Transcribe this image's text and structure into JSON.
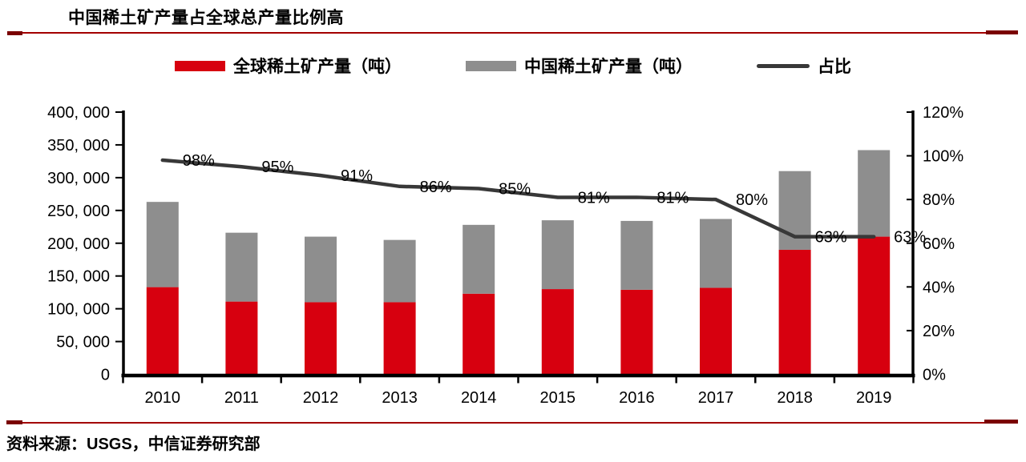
{
  "page": {
    "title": "中国稀土矿产量占全球总产量比例高",
    "source": "资料来源：USGS，中信证券研究部"
  },
  "style": {
    "accent_rule": "#a30000",
    "accent_dash": "#7a0000",
    "bar_red": "#d7000f",
    "bar_gray": "#8e8e8e",
    "line_dark": "#383838",
    "axis_black": "#000000"
  },
  "legend": {
    "items": [
      {
        "label": "全球稀土矿产量（吨）",
        "swatch": "bar",
        "color": "#d7000f"
      },
      {
        "label": "中国稀土矿产量（吨）",
        "swatch": "bar",
        "color": "#8e8e8e"
      },
      {
        "label": "占比",
        "swatch": "line",
        "color": "#383838"
      }
    ]
  },
  "chart_data": {
    "type": "bar",
    "subtype": "stacked-bar-with-secondary-axis-line",
    "title": "中国稀土矿产量占全球总产量比例高",
    "grid": false,
    "legend_position": "top-center",
    "categories": [
      "2010",
      "2011",
      "2012",
      "2013",
      "2014",
      "2015",
      "2016",
      "2017",
      "2018",
      "2019"
    ],
    "series": [
      {
        "name": "全球稀土矿产量（吨）",
        "type": "bar",
        "stack_order": "bottom",
        "axis": "left",
        "color": "#d7000f",
        "values": [
          133000,
          111000,
          110000,
          110000,
          123000,
          130000,
          129000,
          132000,
          190000,
          210000
        ]
      },
      {
        "name": "中国稀土矿产量（吨）",
        "type": "bar",
        "stack_order": "top",
        "axis": "left",
        "color": "#8e8e8e",
        "values": [
          130000,
          105000,
          100000,
          95000,
          105000,
          105000,
          105000,
          105000,
          120000,
          132000
        ]
      },
      {
        "name": "占比",
        "type": "line",
        "axis": "right",
        "color": "#383838",
        "values": [
          0.98,
          0.95,
          0.91,
          0.86,
          0.85,
          0.81,
          0.81,
          0.8,
          0.63,
          0.63
        ],
        "point_labels": [
          "98%",
          "95%",
          "91%",
          "86%",
          "85%",
          "81%",
          "81%",
          "80%",
          "63%",
          "63%"
        ]
      }
    ],
    "left_axis": {
      "min": 0,
      "max": 400000,
      "tick_step": 50000,
      "tick_labels_top_to_bottom": [
        "400, 000",
        "350, 000",
        "300, 000",
        "250, 000",
        "200, 000",
        "150, 000",
        "100, 000",
        "50, 000",
        "0"
      ]
    },
    "right_axis": {
      "min": "0%",
      "max": "120%",
      "tick_step": "20%",
      "tick_labels_top_to_bottom": [
        "120%",
        "100%",
        "80%",
        "60%",
        "40%",
        "20%",
        "0%"
      ]
    }
  }
}
